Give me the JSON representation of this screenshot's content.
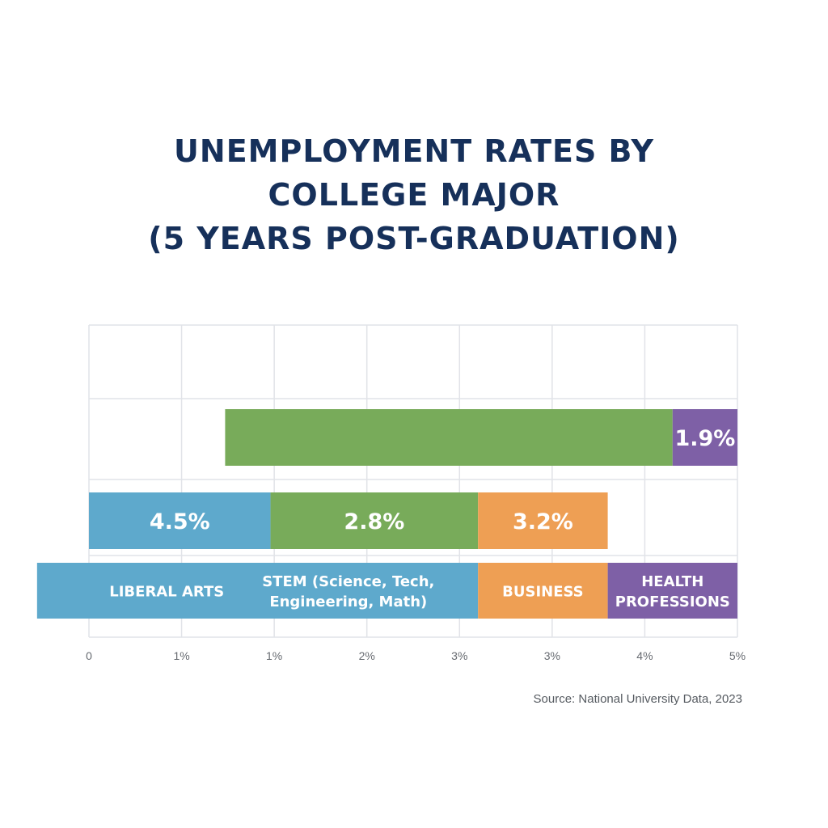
{
  "chart_data": {
    "type": "bar",
    "title_lines": [
      "UNEMPLOYMENT RATES BY",
      "COLLEGE MAJOR",
      "(5 YEARS POST-GRADUATION)"
    ],
    "xaxis": {
      "tick_labels": [
        "0",
        "1%",
        "1%",
        "2%",
        "3%",
        "3%",
        "4%",
        "5%"
      ]
    },
    "grid": true,
    "value_segments": [
      {
        "row": 1,
        "start": 1.05,
        "end": 4.5,
        "color": "#78ab5a",
        "label": ""
      },
      {
        "row": 1,
        "start": 4.5,
        "end": 5.0,
        "color": "#7e60a6",
        "label": "1.9%"
      },
      {
        "row": 2,
        "start": 0.0,
        "end": 1.4,
        "color": "#5ea9cc",
        "label": "4.5%"
      },
      {
        "row": 2,
        "start": 1.4,
        "end": 3.0,
        "color": "#78ab5a",
        "label": "2.8%"
      },
      {
        "row": 2,
        "start": 3.0,
        "end": 4.0,
        "color": "#ee9f54",
        "label": "3.2%"
      }
    ],
    "category_segments": [
      {
        "start": -0.4,
        "end": 3.0,
        "color": "#5ea9cc",
        "label_lines": []
      },
      {
        "start": 3.0,
        "end": 4.0,
        "color": "#ee9f54",
        "label_lines": [
          "BUSINESS"
        ]
      },
      {
        "start": 4.0,
        "end": 5.0,
        "color": "#7e60a6",
        "label_lines": [
          "HEALTH",
          "PROFESSIONS"
        ]
      }
    ],
    "overlay_labels": [
      {
        "at": 0.6,
        "label_lines": [
          "LIBERAL ARTS"
        ]
      },
      {
        "at": 2.0,
        "label_lines": [
          "STEM (Science, Tech,",
          "Engineering, Math)"
        ]
      }
    ],
    "source": "Source: National University Data, 2023"
  }
}
